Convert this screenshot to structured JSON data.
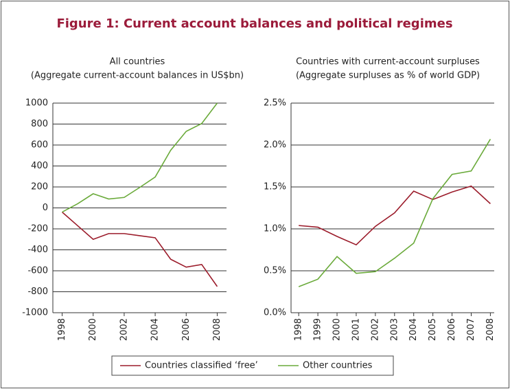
{
  "title": "Figure 1: Current account balances and political regimes",
  "chart_data": [
    {
      "type": "line",
      "title": "All countries",
      "subtitle": "(Aggregate current-account balances in US$bn)",
      "x": [
        1998,
        1999,
        2000,
        2001,
        2002,
        2003,
        2004,
        2005,
        2006,
        2007,
        2008
      ],
      "series": [
        {
          "name": "Countries classified ‘free’",
          "color": "#9b1b2a",
          "values": [
            -40,
            -170,
            -300,
            -245,
            -245,
            -265,
            -285,
            -490,
            -565,
            -540,
            -750
          ]
        },
        {
          "name": "Other countries",
          "color": "#6aaa3a",
          "values": [
            -40,
            40,
            135,
            85,
            100,
            195,
            295,
            550,
            730,
            805,
            1000
          ]
        }
      ],
      "xlim": [
        1997.4,
        2008.6
      ],
      "xticks": [
        1998,
        2000,
        2002,
        2004,
        2006,
        2008
      ],
      "ylim": [
        -1000,
        1000
      ],
      "yticks": [
        -1000,
        -800,
        -600,
        -400,
        -200,
        0,
        200,
        400,
        600,
        800,
        1000
      ],
      "grid": true
    },
    {
      "type": "line",
      "title": "Countries with current-account surpluses",
      "subtitle": "(Aggregate surpluses as % of world GDP)",
      "x": [
        1998,
        1999,
        2000,
        2001,
        2002,
        2003,
        2004,
        2005,
        2006,
        2007,
        2008
      ],
      "series": [
        {
          "color": "#9b1b2a",
          "values": [
            1.04,
            1.02,
            0.91,
            0.81,
            1.03,
            1.19,
            1.45,
            1.35,
            1.44,
            1.51,
            1.3
          ]
        },
        {
          "color": "#6aaa3a",
          "values": [
            0.31,
            0.4,
            0.67,
            0.47,
            0.49,
            0.65,
            0.83,
            1.36,
            1.65,
            1.69,
            2.07
          ]
        }
      ],
      "xlim": [
        1997.6,
        2008.2
      ],
      "xticks": [
        1998,
        1999,
        2000,
        2001,
        2002,
        2003,
        2004,
        2005,
        2006,
        2007,
        2008
      ],
      "ylim": [
        0,
        2.5
      ],
      "yticks": [
        {
          "value": 0,
          "label": "0.0%"
        },
        {
          "value": 0.5,
          "label": "0.5%"
        },
        {
          "value": 1.0,
          "label": "1.0%"
        },
        {
          "value": 1.5,
          "label": "1.5%"
        },
        {
          "value": 2.0,
          "label": "2.0%"
        },
        {
          "value": 2.5,
          "label": "2.5%"
        }
      ],
      "grid": true
    }
  ]
}
